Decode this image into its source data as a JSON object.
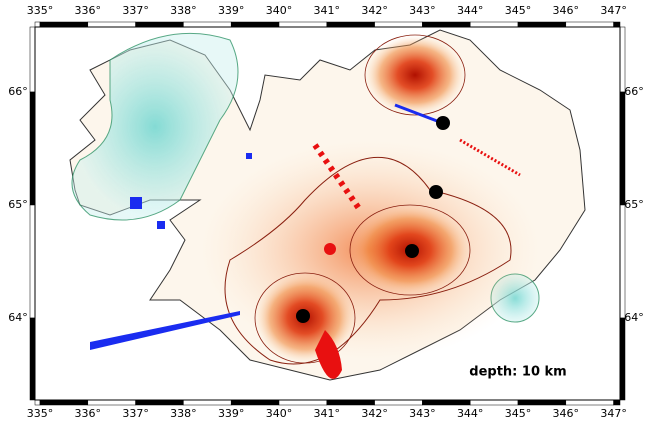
{
  "map": {
    "lon_labels": [
      "335°",
      "336°",
      "337°",
      "338°",
      "339°",
      "340°",
      "341°",
      "342°",
      "343°",
      "344°",
      "345°",
      "346°",
      "347°"
    ],
    "lat_labels": [
      "66°",
      "65°",
      "64°"
    ],
    "annotation": "depth: 10 km"
  }
}
